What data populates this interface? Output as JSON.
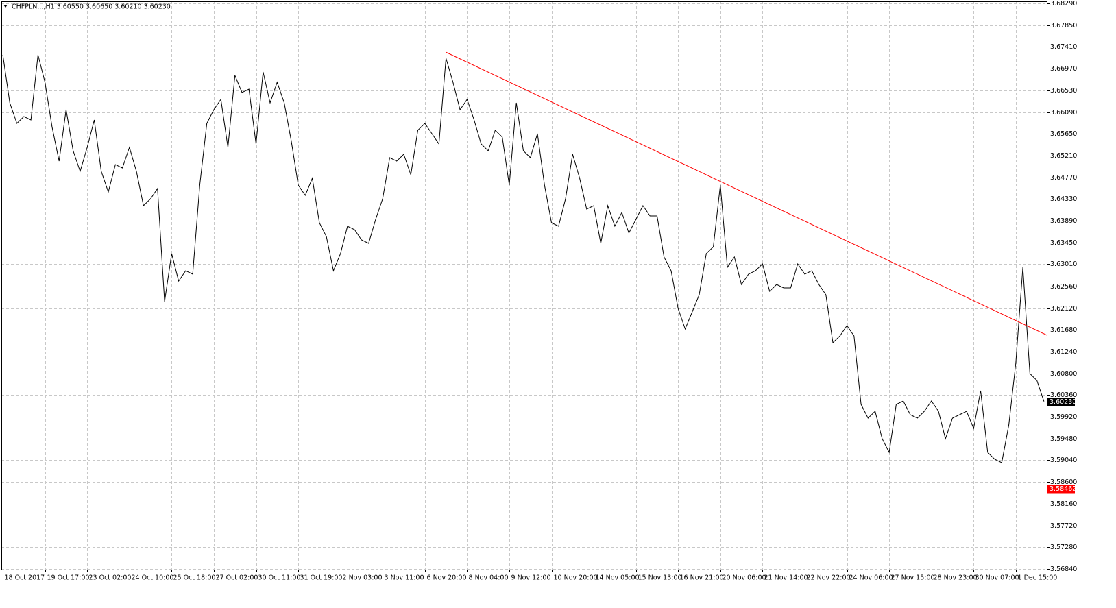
{
  "chart_data": {
    "type": "line",
    "title": "CHFPLN...,H1  3.60550 3.60650 3.60210 3.60230",
    "x": [
      0,
      1,
      2,
      3,
      4,
      5,
      6,
      7,
      8,
      9,
      10,
      11,
      12,
      13,
      14,
      15,
      16,
      17,
      18,
      19,
      20,
      21,
      22,
      23,
      24,
      25,
      26,
      27,
      28,
      29,
      30,
      31,
      32,
      33,
      34,
      35,
      36,
      37,
      38,
      39,
      40,
      41,
      42,
      43,
      44,
      45,
      46,
      47,
      48,
      49,
      50,
      51,
      52,
      53,
      54,
      55,
      56,
      57,
      58,
      59,
      60,
      61,
      62,
      63,
      64,
      65,
      66,
      67,
      68,
      69,
      70,
      71,
      72,
      73,
      74,
      75,
      76,
      77,
      78,
      79,
      80,
      81,
      82,
      83,
      84,
      85,
      86,
      87,
      88,
      89,
      90,
      91,
      92,
      93,
      94,
      95,
      96,
      97,
      98,
      99,
      100,
      101,
      102,
      103,
      104,
      105,
      106,
      107,
      108,
      109,
      110,
      111,
      112,
      113,
      114,
      115,
      116,
      117,
      118,
      119,
      120,
      121,
      122,
      123,
      124,
      125,
      126,
      127,
      128,
      129,
      130,
      131,
      132,
      133,
      134,
      135,
      136,
      137,
      138,
      139,
      140,
      141,
      142,
      143,
      144,
      145,
      146,
      147,
      148
    ],
    "series": [
      {
        "color": "#000000",
        "values": [
          3.67249,
          3.66278,
          3.65861,
          3.66,
          3.65931,
          3.67249,
          3.66694,
          3.65792,
          3.65098,
          3.66139,
          3.65306,
          3.6489,
          3.65375,
          3.65931,
          3.6489,
          3.64473,
          3.65028,
          3.64959,
          3.65375,
          3.6489,
          3.64196,
          3.64335,
          3.64543,
          3.62253,
          3.63224,
          3.62669,
          3.62877,
          3.62808,
          3.64612,
          3.65861,
          3.66139,
          3.66347,
          3.65375,
          3.66833,
          3.66486,
          3.66555,
          3.65445,
          3.66902,
          3.66278,
          3.66694,
          3.66278,
          3.65514,
          3.64612,
          3.64404,
          3.64751,
          3.63849,
          3.63571,
          3.62877,
          3.63224,
          3.63779,
          3.6371,
          3.63502,
          3.63432,
          3.63918,
          3.64335,
          3.65167,
          3.65098,
          3.65237,
          3.6482,
          3.65722,
          3.65861,
          3.65653,
          3.65445,
          3.6718,
          3.66694,
          3.66139,
          3.66347,
          3.65931,
          3.65445,
          3.65306,
          3.65722,
          3.65584,
          3.64612,
          3.66278,
          3.65306,
          3.65167,
          3.65653,
          3.64612,
          3.63849,
          3.63779,
          3.64335,
          3.65237,
          3.64751,
          3.64126,
          3.64196,
          3.63432,
          3.64196,
          3.63779,
          3.64057,
          3.63641,
          3.63918,
          3.64196,
          3.63988,
          3.63988,
          3.63155,
          3.62877,
          3.62114,
          3.61698,
          3.62045,
          3.62392,
          3.63224,
          3.63363,
          3.64612,
          3.62947,
          3.63155,
          3.626,
          3.62808,
          3.62877,
          3.63016,
          3.62461,
          3.626,
          3.6253,
          3.6253,
          3.63016,
          3.62808,
          3.62877,
          3.626,
          3.62392,
          3.6142,
          3.61559,
          3.61767,
          3.61559,
          3.60171,
          3.59893,
          3.60032,
          3.59477,
          3.59199,
          3.60171,
          3.6024,
          3.59963,
          3.59893,
          3.60032,
          3.6024,
          3.60032,
          3.59477,
          3.59893,
          3.59963,
          3.60032,
          3.59685,
          3.60449,
          3.59199,
          3.59061,
          3.58991,
          3.59755,
          3.61004,
          3.62947,
          3.60795,
          3.60657,
          3.6023
        ]
      }
    ],
    "xlim": [
      -0.2,
      148.4
    ],
    "ylim": [
      3.56826,
      3.68332
    ],
    "xticks": [
      {
        "value": 0,
        "label": "18 Oct 2017"
      },
      {
        "value": 6,
        "label": "19 Oct 17:00"
      },
      {
        "value": 12,
        "label": "23 Oct 02:00"
      },
      {
        "value": 18,
        "label": "24 Oct 10:00"
      },
      {
        "value": 24,
        "label": "25 Oct 18:00"
      },
      {
        "value": 30,
        "label": "27 Oct 02:00"
      },
      {
        "value": 36,
        "label": "30 Oct 11:00"
      },
      {
        "value": 42,
        "label": "31 Oct 19:00"
      },
      {
        "value": 48,
        "label": "2 Nov 03:00"
      },
      {
        "value": 54,
        "label": "3 Nov 11:00"
      },
      {
        "value": 60,
        "label": "6 Nov 20:00"
      },
      {
        "value": 66,
        "label": "8 Nov 04:00"
      },
      {
        "value": 72,
        "label": "9 Nov 12:00"
      },
      {
        "value": 78,
        "label": "10 Nov 20:00"
      },
      {
        "value": 84,
        "label": "14 Nov 05:00"
      },
      {
        "value": 90,
        "label": "15 Nov 13:00"
      },
      {
        "value": 96,
        "label": "16 Nov 21:00"
      },
      {
        "value": 102,
        "label": "20 Nov 06:00"
      },
      {
        "value": 108,
        "label": "21 Nov 14:00"
      },
      {
        "value": 114,
        "label": "22 Nov 22:00"
      },
      {
        "value": 120,
        "label": "24 Nov 06:00"
      },
      {
        "value": 126,
        "label": "27 Nov 15:00"
      },
      {
        "value": 132,
        "label": "28 Nov 23:00"
      },
      {
        "value": 138,
        "label": "30 Nov 07:00"
      },
      {
        "value": 144,
        "label": "1 Dec 15:00"
      }
    ],
    "yticks": [
      {
        "value": 3.6829,
        "label": "3.68290"
      },
      {
        "value": 3.6785,
        "label": "3.67850"
      },
      {
        "value": 3.6741,
        "label": "3.67410"
      },
      {
        "value": 3.6697,
        "label": "3.66970"
      },
      {
        "value": 3.6653,
        "label": "3.66530"
      },
      {
        "value": 3.6609,
        "label": "3.66090"
      },
      {
        "value": 3.6565,
        "label": "3.65650"
      },
      {
        "value": 3.6521,
        "label": "3.65210"
      },
      {
        "value": 3.6477,
        "label": "3.64770"
      },
      {
        "value": 3.6433,
        "label": "3.64330"
      },
      {
        "value": 3.6389,
        "label": "3.63890"
      },
      {
        "value": 3.6345,
        "label": "3.63450"
      },
      {
        "value": 3.6301,
        "label": "3.63010"
      },
      {
        "value": 3.6256,
        "label": "3.62560"
      },
      {
        "value": 3.6212,
        "label": "3.62120"
      },
      {
        "value": 3.6168,
        "label": "3.61680"
      },
      {
        "value": 3.6124,
        "label": "3.61240"
      },
      {
        "value": 3.608,
        "label": "3.60800"
      },
      {
        "value": 3.6036,
        "label": "3.60360"
      },
      {
        "value": 3.5992,
        "label": "3.59920"
      },
      {
        "value": 3.5948,
        "label": "3.59480"
      },
      {
        "value": 3.5904,
        "label": "3.59040"
      },
      {
        "value": 3.586,
        "label": "3.58600"
      },
      {
        "value": 3.5816,
        "label": "3.58160"
      },
      {
        "value": 3.5772,
        "label": "3.57720"
      },
      {
        "value": 3.5728,
        "label": "3.57280"
      },
      {
        "value": 3.5684,
        "label": "3.56840"
      }
    ],
    "grid": true,
    "current_price": {
      "value": 3.6023,
      "label": "3.60230",
      "color": "#000000"
    },
    "horizontal_line": {
      "value": 3.58462,
      "label": "3.58462",
      "color": "#ff0000"
    },
    "trendline": {
      "x": [
        62.96,
        148.44
      ],
      "y": [
        3.67305,
        3.61572
      ],
      "color": "#ff0000"
    }
  }
}
